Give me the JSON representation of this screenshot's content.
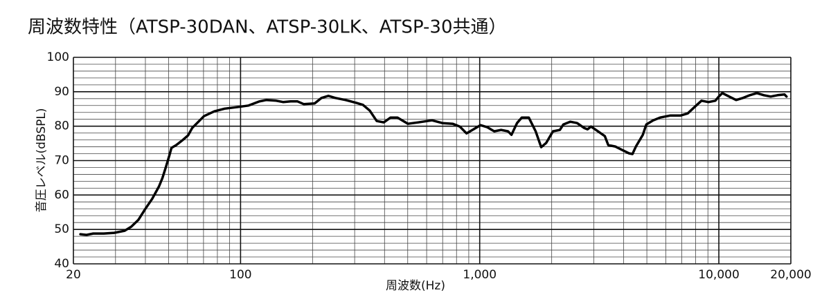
{
  "chart_data": {
    "type": "line",
    "title": "周波数特性（ATSP-30DAN、ATSP-30LK、ATSP-30共通）",
    "xlabel": "周波数(Hz)",
    "ylabel": "音圧レベル(dBSPL)",
    "xscale": "log",
    "xlim": [
      20,
      20000
    ],
    "ylim": [
      40,
      100
    ],
    "xticks": [
      20,
      100,
      {
        "value": 1000,
        "label": "1,000"
      },
      {
        "value": 10000,
        "label": "10,000"
      },
      {
        "value": 20000,
        "label": "20,000"
      }
    ],
    "yticks": [
      40,
      50,
      60,
      70,
      80,
      90,
      100
    ],
    "x_minor_grid": [
      30,
      40,
      50,
      60,
      70,
      80,
      90,
      200,
      300,
      400,
      500,
      600,
      700,
      800,
      900,
      2000,
      3000,
      4000,
      5000,
      6000,
      7000,
      8000,
      9000
    ],
    "y_minor_grid": [
      42,
      44,
      46,
      48,
      52,
      54,
      56,
      58,
      62,
      64,
      66,
      68,
      72,
      74,
      76,
      78,
      82,
      84,
      86,
      88,
      92,
      94,
      96,
      98
    ],
    "grid": true,
    "series": [
      {
        "color": "#000000",
        "x": [
          21.4,
          22.7,
          24.2,
          26.8,
          29.6,
          32.7,
          34.9,
          37.4,
          39.9,
          42.7,
          45.6,
          47.1,
          48.7,
          50.4,
          51.4,
          53.8,
          57.6,
          60.3,
          62.8,
          65.8,
          70.3,
          77.7,
          85.8,
          98,
          108,
          120,
          128,
          141,
          151,
          162,
          173,
          184,
          204,
          218,
          233,
          249,
          275,
          304,
          325,
          347,
          371,
          397,
          424,
          453,
          501,
          553,
          632,
          698,
          772,
          825,
          881,
          942,
          1007,
          1076,
          1150,
          1229,
          1313,
          1358,
          1432,
          1500,
          1604,
          1714,
          1808,
          1895,
          2025,
          2164,
          2237,
          2391,
          2555,
          2731,
          2824,
          2920,
          3121,
          3335,
          3449,
          3686,
          3939,
          4210,
          4353,
          4500,
          4810,
          4973,
          5314,
          5679,
          6276,
          6934,
          7411,
          7920,
          8464,
          9045,
          9672,
          10000,
          10340,
          11050,
          11810,
          12620,
          13490,
          14420,
          15410,
          16470,
          17610,
          18820,
          19190
        ],
        "values": [
          48.6,
          48.4,
          48.8,
          48.8,
          49.0,
          49.6,
          50.8,
          52.8,
          55.9,
          58.9,
          62.5,
          64.9,
          68.1,
          71.5,
          73.7,
          74.5,
          76.1,
          77.3,
          79.5,
          80.9,
          82.9,
          84.3,
          85.1,
          85.6,
          86.0,
          87.2,
          87.6,
          87.4,
          87.0,
          87.2,
          87.2,
          86.4,
          86.6,
          88.2,
          88.8,
          88.2,
          87.6,
          86.8,
          86.2,
          84.5,
          81.5,
          81.1,
          82.5,
          82.5,
          80.7,
          81.1,
          81.7,
          80.9,
          80.7,
          79.9,
          77.9,
          79.1,
          80.3,
          79.7,
          78.5,
          78.9,
          78.5,
          77.5,
          80.9,
          82.5,
          82.5,
          78.5,
          73.9,
          75.1,
          78.5,
          78.9,
          80.5,
          81.3,
          80.9,
          79.5,
          79.1,
          79.9,
          78.5,
          77.1,
          74.5,
          74.1,
          73.1,
          72.1,
          71.9,
          74.1,
          77.5,
          80.5,
          81.7,
          82.5,
          83.1,
          83.1,
          83.7,
          85.6,
          87.4,
          87.0,
          87.4,
          88.6,
          89.6,
          88.6,
          87.6,
          88.2,
          89.0,
          89.6,
          89.0,
          88.6,
          89.0,
          89.2,
          88.6
        ]
      }
    ]
  }
}
